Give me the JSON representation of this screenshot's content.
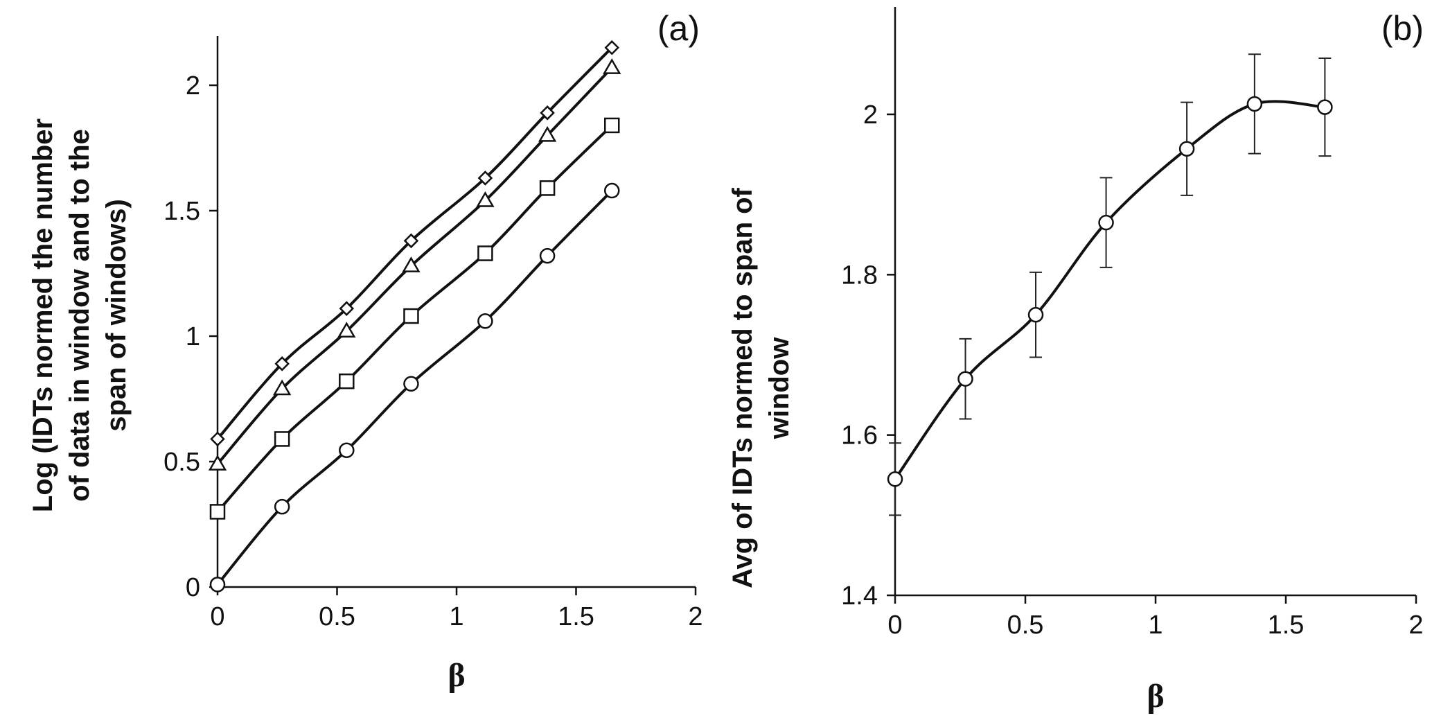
{
  "chart_data": [
    {
      "type": "line",
      "panel_label": "(a)",
      "xlabel": "β",
      "ylabel_lines": [
        "Log (IDTs normed the number",
        "of data in window and to the",
        "span of  windows)"
      ],
      "xlim": [
        0,
        2
      ],
      "ylim": [
        0,
        2.2
      ],
      "xticks": [
        "0",
        "0.5",
        "1",
        "1.5",
        "2"
      ],
      "yticks": [
        "0",
        "0.5",
        "1",
        "1.5",
        "2"
      ],
      "x": [
        0,
        0.27,
        0.54,
        0.81,
        1.12,
        1.38,
        1.65
      ],
      "series": [
        {
          "name": "diamond",
          "marker": "diamond",
          "values": [
            0.59,
            0.89,
            1.11,
            1.38,
            1.63,
            1.89,
            2.15
          ]
        },
        {
          "name": "triangle",
          "marker": "triangle",
          "values": [
            0.49,
            0.79,
            1.02,
            1.28,
            1.54,
            1.8,
            2.07
          ]
        },
        {
          "name": "square",
          "marker": "square",
          "values": [
            0.3,
            0.59,
            0.82,
            1.08,
            1.33,
            1.59,
            1.84
          ]
        },
        {
          "name": "circle",
          "marker": "circle",
          "values": [
            0.01,
            0.32,
            0.545,
            0.81,
            1.06,
            1.32,
            1.58
          ]
        }
      ],
      "grid": false
    },
    {
      "type": "line",
      "panel_label": "(b)",
      "xlabel": "β",
      "ylabel_lines": [
        "Avg of IDTs normed to span of",
        "window"
      ],
      "xlim": [
        0,
        2
      ],
      "ylim": [
        1.4,
        2.1
      ],
      "xticks": [
        "0",
        "0.5",
        "1",
        "1.5",
        "2"
      ],
      "yticks": [
        "1.4",
        "1.6",
        "1.8",
        "2"
      ],
      "x": [
        0,
        0.27,
        0.54,
        0.81,
        1.12,
        1.38,
        1.65
      ],
      "series": [
        {
          "name": "avg",
          "marker": "circle",
          "values": [
            1.545,
            1.67,
            1.75,
            1.865,
            1.957,
            2.013,
            2.009
          ],
          "error": [
            0.045,
            0.05,
            0.053,
            0.056,
            0.058,
            0.062,
            0.061
          ]
        }
      ],
      "grid": false
    }
  ]
}
